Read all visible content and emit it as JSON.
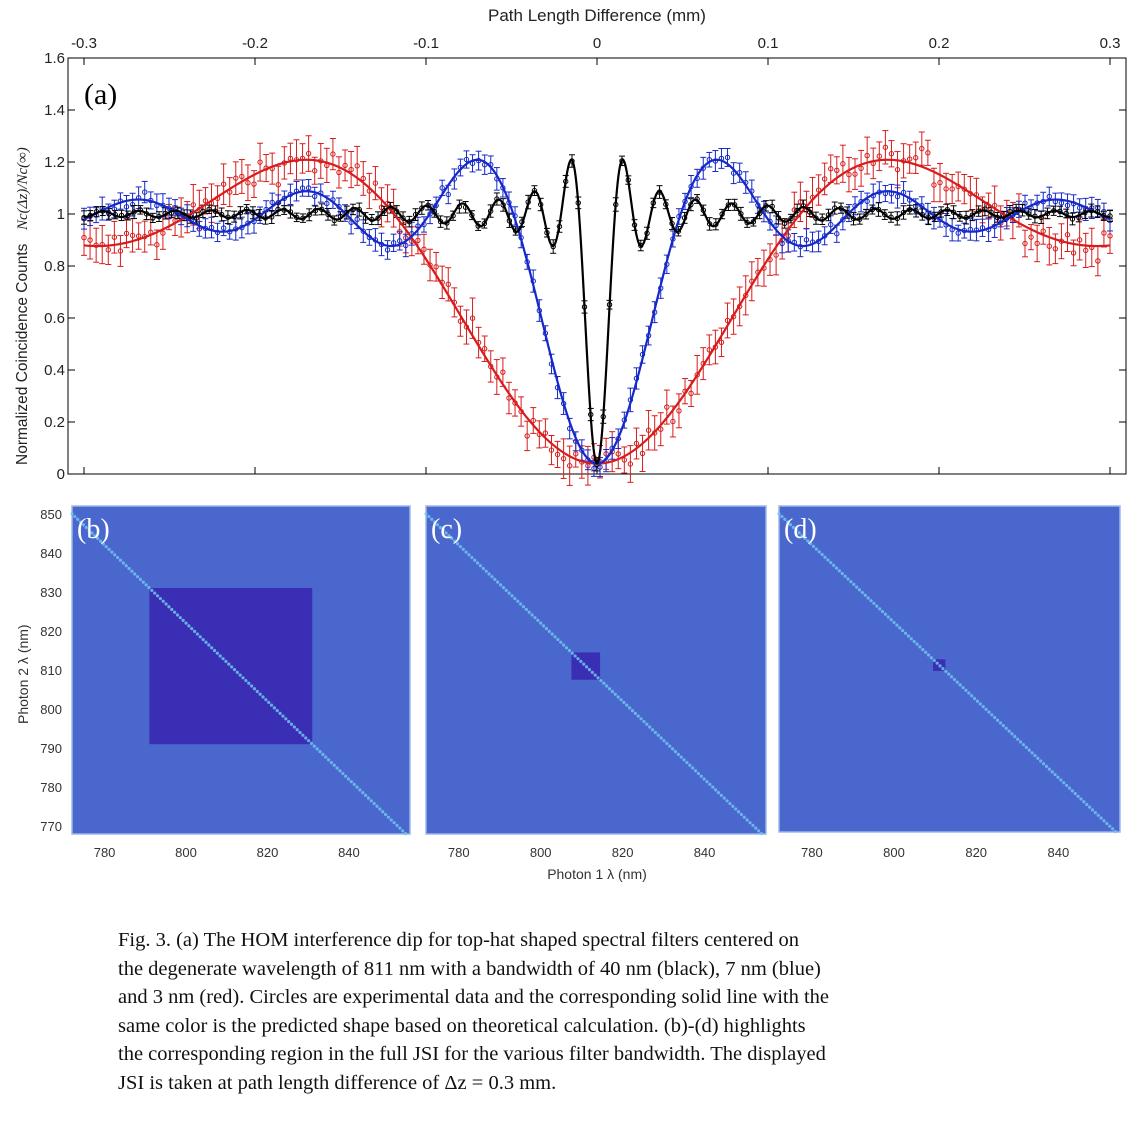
{
  "panel_a": {
    "top_axis_title": "Path Length Difference (mm)",
    "ylabel": "Normalized Coincidence Counts",
    "ylabel_math": "Nc(Δz)/Nc(∞)",
    "panel_label": "(a)",
    "x_ticks": [
      "-0.3",
      "-0.2",
      "-0.1",
      "0",
      "0.1",
      "0.2",
      "0.3"
    ],
    "y_ticks": [
      "0",
      "0.2",
      "0.4",
      "0.6",
      "0.8",
      "1",
      "1.2",
      "1.4",
      "1.6"
    ]
  },
  "panels_jsi": {
    "labels": [
      "(b)",
      "(c)",
      "(d)"
    ],
    "ylabel": "Photon 2 λ (nm)",
    "xlabel": "Photon 1 λ (nm)",
    "y_ticks": [
      "850",
      "840",
      "830",
      "820",
      "810",
      "800",
      "790",
      "780",
      "770"
    ],
    "x_ticks": [
      "780",
      "800",
      "820",
      "840"
    ]
  },
  "colors": {
    "black_series": "#000000",
    "blue_series": "#1528c8",
    "red_series": "#d81c1c",
    "jsi_background": "#4a67cd",
    "jsi_filter_region": "#3a2fb4",
    "jsi_diagonal": "#6fc4ee"
  },
  "chart_data": [
    {
      "type": "line",
      "panel": "(a)",
      "title": "",
      "xlabel": "Path Length Difference (mm)",
      "ylabel": "Normalized Coincidence Counts Nc(Δz)/Nc(∞)",
      "xlim": [
        -0.3,
        0.3
      ],
      "ylim": [
        0,
        1.6
      ],
      "grid": false,
      "series": [
        {
          "color": "black",
          "bandwidth_nm": 40,
          "dip_min": 0.04,
          "peak_values": [
            1.2,
            1.21
          ],
          "peak_x": [
            -0.011,
            0.011
          ]
        },
        {
          "color": "blue",
          "bandwidth_nm": 7,
          "dip_min": 0.04,
          "peak_values": [
            1.2,
            1.2
          ],
          "peak_x": [
            -0.07,
            0.07
          ]
        },
        {
          "color": "red",
          "bandwidth_nm": 3,
          "dip_min": 0.04,
          "peak_values": [
            1.37,
            1.37
          ],
          "peak_x": [
            -0.17,
            0.17
          ]
        }
      ]
    },
    {
      "type": "heatmap",
      "panel": "(b)",
      "xlabel": "Photon 1 λ (nm)",
      "ylabel": "Photon 2 λ (nm)",
      "xlim": [
        772,
        855
      ],
      "ylim": [
        768,
        852
      ],
      "filter_center_nm": 811,
      "filter_bandwidth_nm": 40
    },
    {
      "type": "heatmap",
      "panel": "(c)",
      "xlabel": "Photon 1 λ (nm)",
      "xlim": [
        772,
        855
      ],
      "ylim": [
        768,
        852
      ],
      "filter_center_nm": 811,
      "filter_bandwidth_nm": 7
    },
    {
      "type": "heatmap",
      "panel": "(d)",
      "xlim": [
        772,
        855
      ],
      "ylim": [
        768,
        852
      ],
      "filter_center_nm": 811,
      "filter_bandwidth_nm": 3
    }
  ],
  "caption": {
    "lines": [
      "Fig. 3.  (a) The HOM interference dip for top-hat shaped spectral filters centered on",
      "the degenerate wavelength of 811 nm with a bandwidth of 40 nm (black), 7 nm (blue)",
      "and 3 nm (red). Circles are experimental data and the corresponding solid line with the",
      "same color is the predicted shape based on theoretical calculation. (b)-(d) highlights",
      "the corresponding region in the full JSI for the various filter bandwidth. The displayed",
      "JSI is taken at path length difference of Δz = 0.3 mm."
    ]
  }
}
